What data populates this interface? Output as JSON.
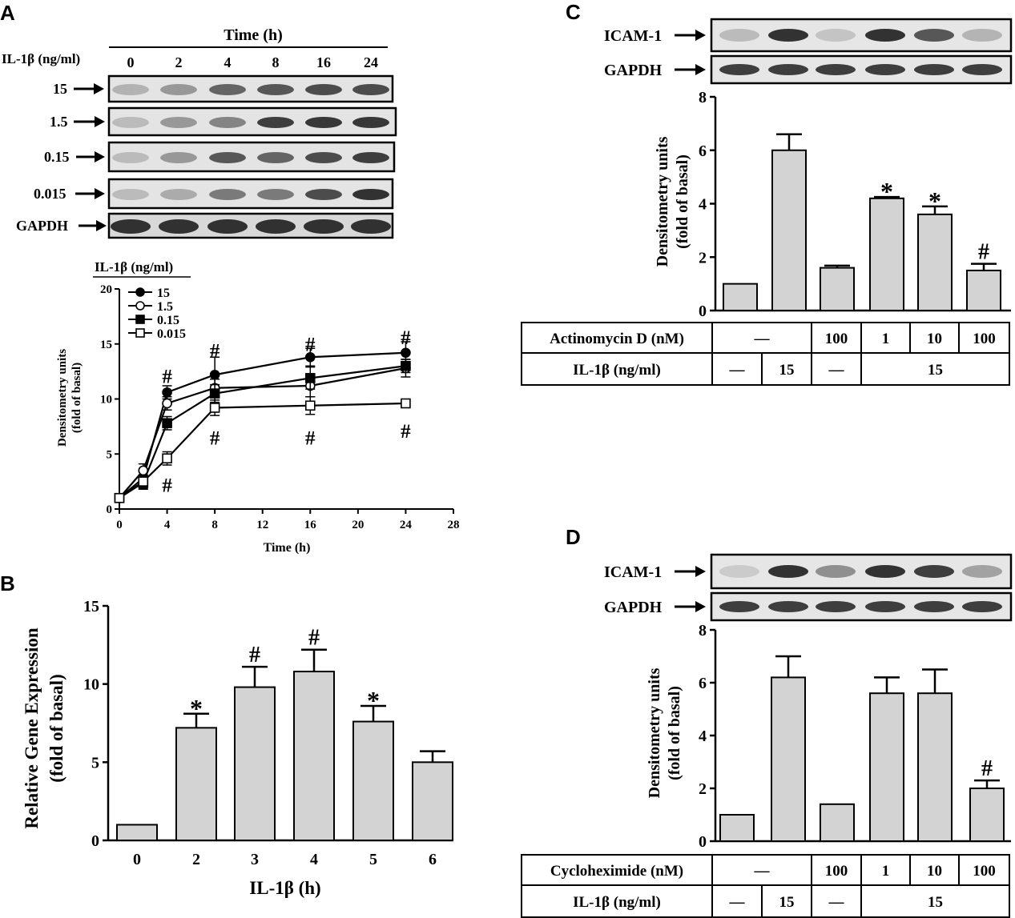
{
  "panel_labels": [
    "A",
    "B",
    "C",
    "D"
  ],
  "blot_A": {
    "header": "Time (h)",
    "row_header": "IL-1β (ng/ml)",
    "lanes": [
      "0",
      "2",
      "4",
      "8",
      "16",
      "24"
    ],
    "rows": [
      {
        "label": "15",
        "intensity": [
          0.35,
          0.5,
          0.75,
          0.8,
          0.85,
          0.85
        ]
      },
      {
        "label": "1.5",
        "intensity": [
          0.3,
          0.5,
          0.6,
          0.9,
          0.92,
          0.92
        ]
      },
      {
        "label": "0.15",
        "intensity": [
          0.3,
          0.5,
          0.8,
          0.75,
          0.85,
          0.9
        ]
      },
      {
        "label": "0.015",
        "intensity": [
          0.3,
          0.4,
          0.65,
          0.65,
          0.85,
          0.95
        ]
      },
      {
        "label": "GAPDH",
        "intensity": [
          0.95,
          0.95,
          0.95,
          0.95,
          0.95,
          0.95
        ]
      }
    ]
  },
  "blot_C": {
    "rows": [
      {
        "label": "ICAM-1",
        "intensity": [
          0.3,
          0.95,
          0.25,
          0.95,
          0.8,
          0.35
        ]
      },
      {
        "label": "GAPDH",
        "intensity": [
          0.9,
          0.9,
          0.9,
          0.9,
          0.9,
          0.9
        ]
      }
    ]
  },
  "blot_D": {
    "rows": [
      {
        "label": "ICAM-1",
        "intensity": [
          0.2,
          0.95,
          0.55,
          0.95,
          0.9,
          0.45
        ]
      },
      {
        "label": "GAPDH",
        "intensity": [
          0.9,
          0.9,
          0.9,
          0.9,
          0.9,
          0.9
        ]
      }
    ]
  },
  "chart_data": [
    {
      "panel": "A",
      "type": "line",
      "legend_title": "IL-1β (ng/ml)",
      "xlabel": "Time (h)",
      "ylabel": [
        "Densitometry units",
        "(fold of basal)"
      ],
      "xlim": [
        0,
        28
      ],
      "ylim": [
        0,
        20
      ],
      "xticks": [
        0,
        4,
        8,
        12,
        16,
        20,
        24,
        28
      ],
      "yticks": [
        0,
        5,
        10,
        15,
        20
      ],
      "x": [
        0,
        2,
        4,
        8,
        16,
        24
      ],
      "series": [
        {
          "name": "15",
          "marker": "filled-circle",
          "values": [
            1,
            2.8,
            10.6,
            12.2,
            13.8,
            14.2
          ],
          "errors": [
            0.2,
            0.6,
            0.6,
            1.6,
            0.8,
            1.0
          ]
        },
        {
          "name": "1.5",
          "marker": "open-circle",
          "values": [
            1,
            3.5,
            9.6,
            11,
            11.2,
            12.8
          ],
          "errors": [
            0.2,
            0.6,
            0.6,
            0.8,
            1.0,
            0.8
          ]
        },
        {
          "name": "0.15",
          "marker": "filled-square",
          "values": [
            1,
            2.4,
            7.8,
            10.5,
            11.9,
            13.0
          ],
          "errors": [
            0.2,
            0.6,
            0.6,
            0.8,
            1.0,
            0.6
          ]
        },
        {
          "name": "0.015",
          "marker": "open-square",
          "values": [
            1,
            2.5,
            4.6,
            9.2,
            9.4,
            9.6
          ],
          "errors": [
            0.2,
            0.6,
            0.6,
            0.7,
            0.8,
            0.3
          ]
        }
      ],
      "annotations": [
        {
          "text": "#",
          "x": 4,
          "y": 12.2
        },
        {
          "text": "#",
          "x": 8,
          "y": 14.5
        },
        {
          "text": "#",
          "x": 16,
          "y": 15.1
        },
        {
          "text": "#",
          "x": 24,
          "y": 15.7
        },
        {
          "text": "#",
          "x": 4,
          "y": 2.3
        },
        {
          "text": "#",
          "x": 8,
          "y": 6.6
        },
        {
          "text": "#",
          "x": 16,
          "y": 6.6
        },
        {
          "text": "#",
          "x": 24,
          "y": 7.2
        }
      ]
    },
    {
      "panel": "B",
      "type": "bar",
      "xlabel": "IL-1β (h)",
      "ylabel": [
        "Relative Gene  Expression",
        "(fold of basal)"
      ],
      "categories": [
        "0",
        "2",
        "3",
        "4",
        "5",
        "6"
      ],
      "values": [
        1,
        7.2,
        9.8,
        10.8,
        7.6,
        5.0
      ],
      "errors": [
        0,
        0.9,
        1.3,
        1.4,
        1.0,
        0.7
      ],
      "annotations": [
        "",
        "*",
        "#",
        "#",
        "*",
        ""
      ],
      "ylim": [
        0,
        15
      ],
      "yticks": [
        0,
        5,
        10,
        15
      ]
    },
    {
      "panel": "C",
      "type": "bar",
      "ylabel": [
        "Densitometry units",
        "(fold of basal)"
      ],
      "categories": [
        "",
        "",
        "",
        "",
        "",
        ""
      ],
      "values": [
        1,
        6.0,
        1.6,
        4.2,
        3.6,
        1.5
      ],
      "errors": [
        0,
        0.6,
        0.08,
        0.05,
        0.3,
        0.25
      ],
      "annotations": [
        "",
        "",
        "",
        "*",
        "*",
        "#"
      ],
      "ylim": [
        0,
        8
      ],
      "yticks": [
        0,
        2,
        4,
        6,
        8
      ]
    },
    {
      "panel": "D",
      "type": "bar",
      "ylabel": [
        "Densitometry units",
        "(fold of basal)"
      ],
      "categories": [
        "",
        "",
        "",
        "",
        "",
        ""
      ],
      "values": [
        1,
        6.2,
        1.4,
        5.6,
        5.6,
        2.0
      ],
      "errors": [
        0,
        0.8,
        0,
        0.6,
        0.9,
        0.3
      ],
      "annotations": [
        "",
        "",
        "",
        "",
        "",
        "#"
      ],
      "ylim": [
        0,
        8
      ],
      "yticks": [
        0,
        2,
        4,
        6,
        8
      ]
    }
  ],
  "table_C": {
    "row1_label": "Actinomycin D (nM)",
    "row1_cells": [
      "—",
      "100",
      "1",
      "10",
      "100"
    ],
    "row2_label": "IL-1β (ng/ml)",
    "row2_cells": [
      "—",
      "15",
      "—",
      "15"
    ]
  },
  "table_D": {
    "row1_label": "Cycloheximide (nM)",
    "row1_cells": [
      "—",
      "100",
      "1",
      "10",
      "100"
    ],
    "row2_label": "IL-1β (ng/ml)",
    "row2_cells": [
      "—",
      "15",
      "—",
      "15"
    ]
  }
}
